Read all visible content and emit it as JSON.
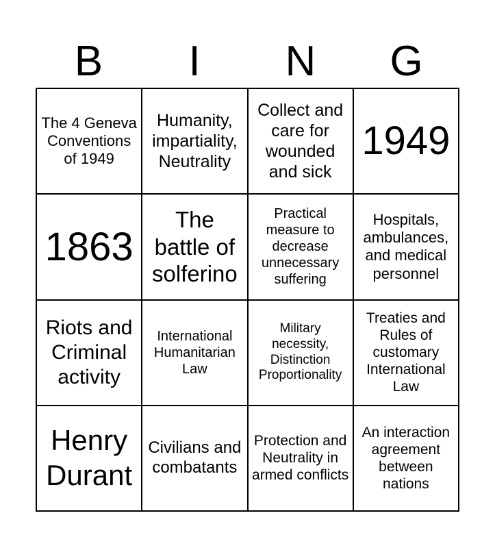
{
  "header": {
    "letters": [
      "B",
      "I",
      "N",
      "G"
    ]
  },
  "cells": [
    {
      "text": "The 4 Geneva Conventions of 1949",
      "size": 22
    },
    {
      "text": "Humanity, impartiality, Neutrality",
      "size": 25
    },
    {
      "text": "Collect and care for wounded and sick",
      "size": 25
    },
    {
      "text": "1949",
      "size": 58
    },
    {
      "text": "1863",
      "size": 58
    },
    {
      "text": "The battle of solferino",
      "size": 33
    },
    {
      "text": "Practical measure to decrease unnecessary suffering",
      "size": 20
    },
    {
      "text": "Hospitals, ambulances, and medical personnel",
      "size": 22
    },
    {
      "text": "Riots and Criminal activity",
      "size": 30
    },
    {
      "text": "International Humanitarian Law",
      "size": 20
    },
    {
      "text": "Military necessity, Distinction Proportionality",
      "size": 19
    },
    {
      "text": "Treaties and Rules of customary International Law",
      "size": 21
    },
    {
      "text": "Henry Durant",
      "size": 42
    },
    {
      "text": "Civilians and combatants",
      "size": 24
    },
    {
      "text": "Protection and Neutrality in armed conflicts",
      "size": 21
    },
    {
      "text": "An interaction agreement between nations",
      "size": 21
    }
  ]
}
